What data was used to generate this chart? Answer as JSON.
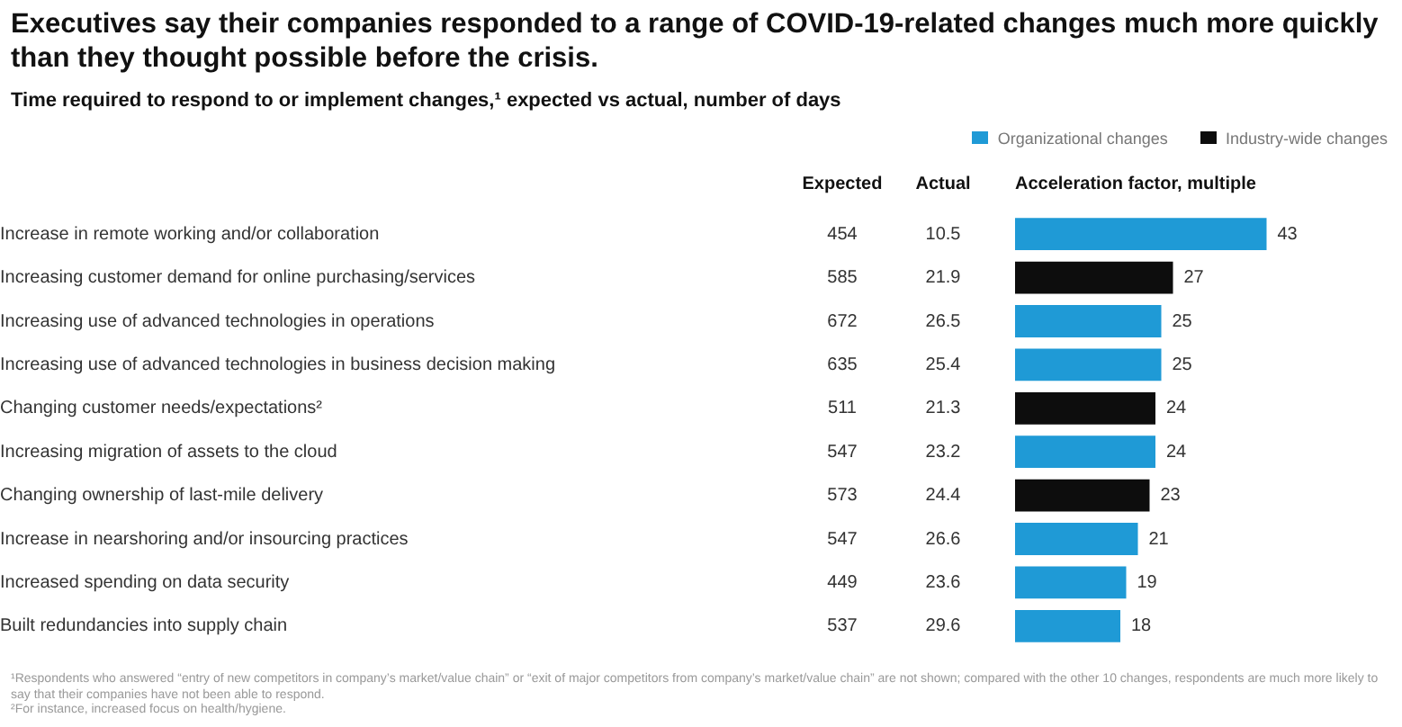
{
  "chart_data": {
    "type": "bar",
    "orientation": "horizontal",
    "stacked": true,
    "title": "Executives say their companies responded to a range of COVID-19-related changes much more quickly than they thought possible before the crisis.",
    "subtitle": "Time required to respond to or implement changes,¹ expected vs actual, number of days",
    "xlabel": "Acceleration factor, multiple",
    "categories": [
      "Increase in remote working and/or collaboration",
      "Increasing customer demand for online purchasing/services",
      "Increasing use of advanced technologies in operations",
      "Increasing use of advanced technologies in business decision making",
      "Changing customer needs/expectations²",
      "Increasing migration of assets to the cloud",
      "Changing ownership of last-mile delivery",
      "Increase in nearshoring and/or insourcing practices",
      "Increased spending on data security",
      "Built redundancies into supply chain"
    ],
    "series": [
      {
        "name": "Organizational changes",
        "color": "#1f9ad6",
        "values": [
          43,
          null,
          25,
          25,
          null,
          24,
          null,
          21,
          19,
          18
        ]
      },
      {
        "name": "Industry-wide changes",
        "color": "#0d0d0d",
        "values": [
          null,
          27,
          null,
          null,
          24,
          null,
          23,
          null,
          null,
          null
        ]
      }
    ],
    "tick_labels": "y",
    "data_labels": true,
    "legend": "top",
    "annotations": [
      "Expected",
      "Actual",
      "454",
      "585",
      "672",
      "635",
      "511",
      "547",
      "573",
      "547",
      "449",
      "537",
      "10.5",
      "21.9",
      "26.5",
      "25.4",
      "21.3",
      "23.2",
      "24.4",
      "26.6",
      "23.6",
      "29.6",
      "¹Respondents who answered “entry of new competitors in company’s market/value chain” or “exit of major competitors from company’s market/value chain” are not shown; compared with the other 10 changes, respondents are much more likely to say that their companies have not been able to respond.",
      "²For instance, increased focus on health/hygiene."
    ]
  }
}
